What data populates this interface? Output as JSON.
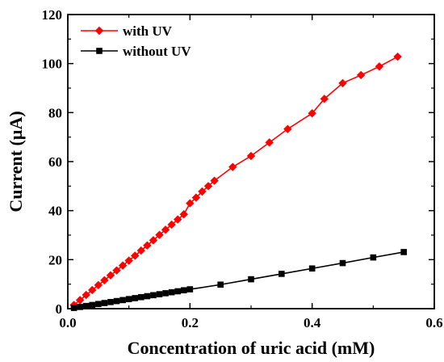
{
  "chart_data": {
    "type": "line",
    "title": "",
    "xlabel": "Concentration of uric acid (mM)",
    "ylabel": "Current (µA)",
    "xlim": [
      0,
      0.6
    ],
    "ylim": [
      0,
      120
    ],
    "xticks": [
      0.0,
      0.2,
      0.4,
      0.6
    ],
    "xtick_labels": [
      "0.0",
      "0.2",
      "0.4",
      "0.6"
    ],
    "yticks": [
      0,
      20,
      40,
      60,
      80,
      100,
      120
    ],
    "ytick_labels": [
      "0",
      "20",
      "40",
      "60",
      "80",
      "100",
      "120"
    ],
    "grid": false,
    "legend_position": "top-left",
    "series": [
      {
        "name": "with UV",
        "color": "#ff0000",
        "marker": "diamond",
        "points": [
          [
            0.01,
            1.5
          ],
          [
            0.02,
            3.5
          ],
          [
            0.03,
            5.6
          ],
          [
            0.04,
            7.6
          ],
          [
            0.05,
            9.6
          ],
          [
            0.06,
            11.6
          ],
          [
            0.07,
            13.6
          ],
          [
            0.08,
            15.6
          ],
          [
            0.09,
            17.6
          ],
          [
            0.1,
            19.6
          ],
          [
            0.11,
            21.6
          ],
          [
            0.12,
            23.7
          ],
          [
            0.13,
            25.8
          ],
          [
            0.14,
            27.9
          ],
          [
            0.15,
            30.1
          ],
          [
            0.16,
            32.2
          ],
          [
            0.17,
            34.3
          ],
          [
            0.18,
            36.4
          ],
          [
            0.19,
            38.5
          ],
          [
            0.2,
            43.0
          ],
          [
            0.21,
            45.3
          ],
          [
            0.22,
            47.8
          ],
          [
            0.23,
            50.0
          ],
          [
            0.24,
            52.2
          ],
          [
            0.27,
            57.8
          ],
          [
            0.3,
            62.3
          ],
          [
            0.33,
            67.8
          ],
          [
            0.36,
            73.3
          ],
          [
            0.4,
            79.7
          ],
          [
            0.42,
            85.6
          ],
          [
            0.45,
            92.0
          ],
          [
            0.48,
            95.3
          ],
          [
            0.51,
            98.8
          ],
          [
            0.54,
            102.8
          ]
        ]
      },
      {
        "name": "without UV",
        "color": "#000000",
        "marker": "square",
        "points": [
          [
            0.01,
            0.3
          ],
          [
            0.02,
            0.7
          ],
          [
            0.03,
            1.1
          ],
          [
            0.04,
            1.5
          ],
          [
            0.05,
            1.9
          ],
          [
            0.06,
            2.3
          ],
          [
            0.07,
            2.7
          ],
          [
            0.08,
            3.1
          ],
          [
            0.09,
            3.5
          ],
          [
            0.1,
            3.9
          ],
          [
            0.11,
            4.3
          ],
          [
            0.12,
            4.7
          ],
          [
            0.13,
            5.1
          ],
          [
            0.14,
            5.5
          ],
          [
            0.15,
            5.9
          ],
          [
            0.16,
            6.3
          ],
          [
            0.17,
            6.7
          ],
          [
            0.18,
            7.1
          ],
          [
            0.19,
            7.5
          ],
          [
            0.2,
            7.9
          ],
          [
            0.25,
            9.8
          ],
          [
            0.3,
            12.0
          ],
          [
            0.35,
            14.2
          ],
          [
            0.4,
            16.4
          ],
          [
            0.45,
            18.6
          ],
          [
            0.5,
            20.9
          ],
          [
            0.55,
            23.1
          ]
        ]
      }
    ]
  }
}
